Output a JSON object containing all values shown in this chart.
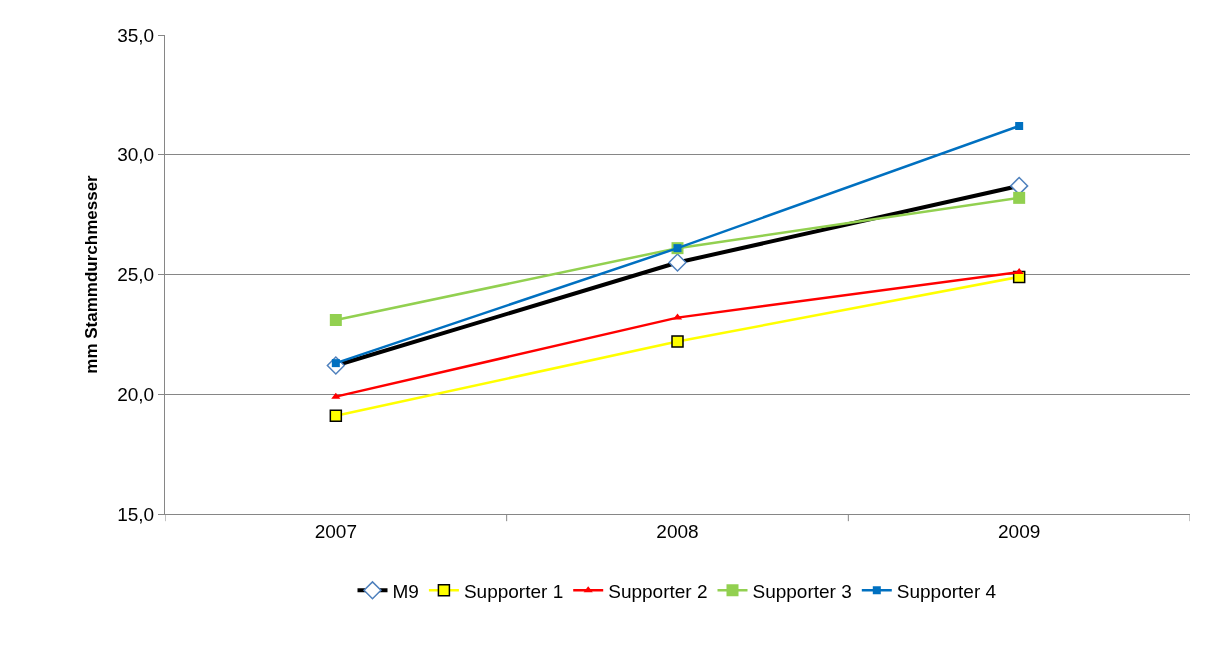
{
  "chart_data": {
    "type": "line",
    "ylabel": "mm Stammdurchmesser",
    "categories": [
      "2007",
      "2008",
      "2009"
    ],
    "series": [
      {
        "name": "M9",
        "color": "#000000",
        "marker": "diamond",
        "values": [
          21.2,
          25.5,
          28.7
        ]
      },
      {
        "name": "Supporter 1",
        "color": "#ffff00",
        "marker": "square",
        "values": [
          19.1,
          22.2,
          24.9
        ]
      },
      {
        "name": "Supporter 2",
        "color": "#ff0000",
        "marker": "triangle",
        "values": [
          19.9,
          23.2,
          25.1
        ]
      },
      {
        "name": "Supporter 3",
        "color": "#92d050",
        "marker": "square",
        "values": [
          23.1,
          26.1,
          28.2
        ]
      },
      {
        "name": "Supporter 4",
        "color": "#0070c0",
        "marker": "square",
        "values": [
          21.3,
          26.1,
          31.2
        ]
      }
    ],
    "ylim": [
      15,
      35
    ],
    "yticks": [
      {
        "value": 15,
        "label": "15,0"
      },
      {
        "value": 20,
        "label": "20,0"
      },
      {
        "value": 25,
        "label": "25,0"
      },
      {
        "value": 30,
        "label": "30,0"
      },
      {
        "value": 35,
        "label": "35,0"
      }
    ],
    "grid": "y",
    "legend": "bottom"
  }
}
